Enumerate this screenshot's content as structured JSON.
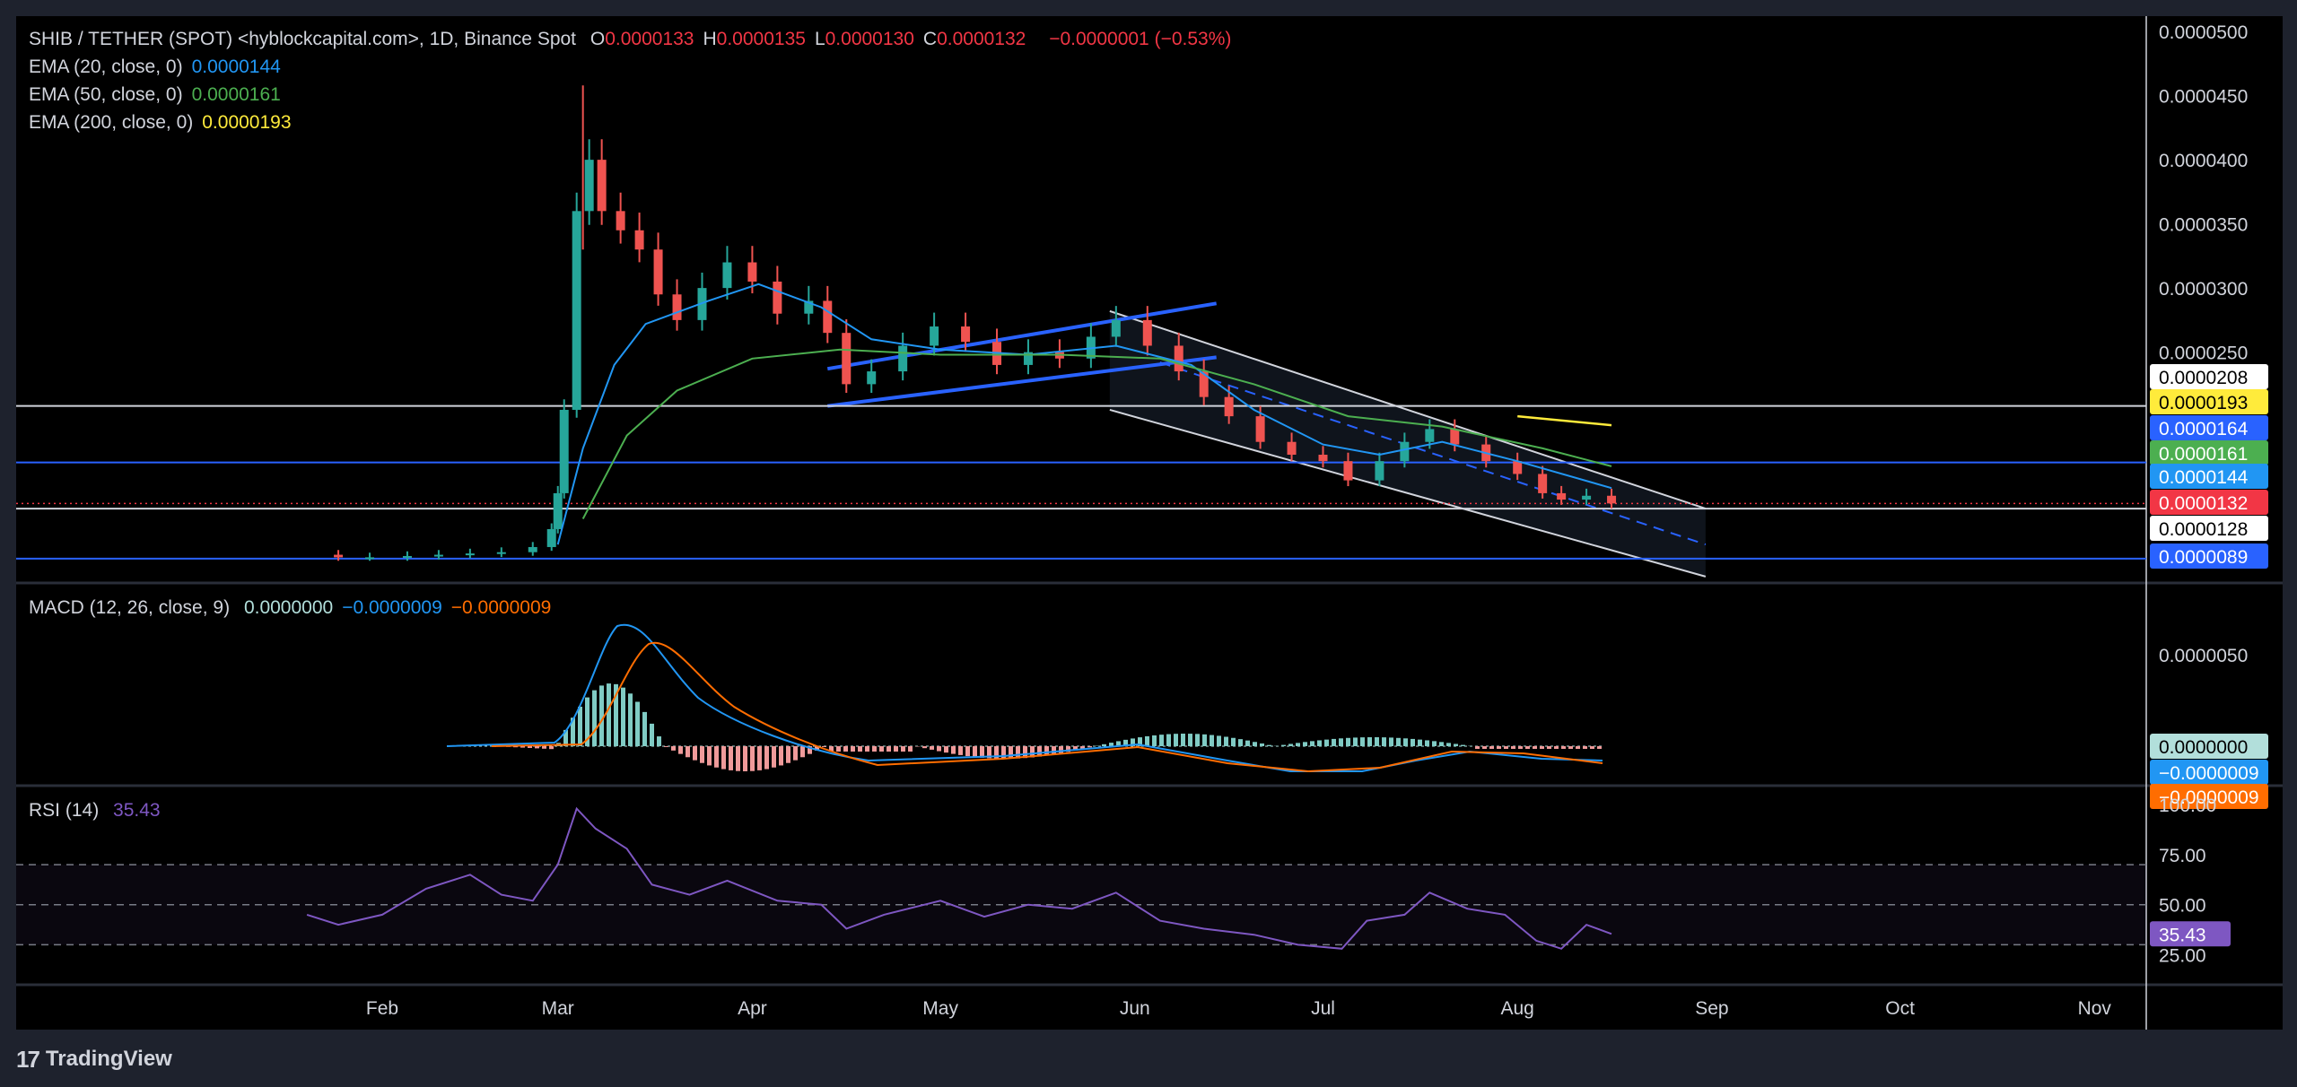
{
  "header": {
    "symbol": "SHIB / TETHER (SPOT) <hyblockcapital.com>, 1D, Binance Spot",
    "ohlc": [
      {
        "k": "O",
        "v": "0.0000133"
      },
      {
        "k": "H",
        "v": "0.0000135"
      },
      {
        "k": "L",
        "v": "0.0000130"
      },
      {
        "k": "C",
        "v": "0.0000132"
      }
    ],
    "change": "−0.0000001 (−0.53%)"
  },
  "ema_legend": [
    {
      "label": "EMA (20, close, 0)",
      "value": "0.0000144",
      "color": "#2196f3"
    },
    {
      "label": "EMA (50, close, 0)",
      "value": "0.0000161",
      "color": "#4caf50"
    },
    {
      "label": "EMA (200, close, 0)",
      "value": "0.0000193",
      "color": "#ffeb3b"
    }
  ],
  "macd_legend": {
    "label": "MACD (12, 26, close, 9)",
    "values": [
      {
        "v": "0.0000000",
        "color": "#b2dfdb"
      },
      {
        "v": "−0.0000009",
        "color": "#2196f3"
      },
      {
        "v": "−0.0000009",
        "color": "#ff6d00"
      }
    ]
  },
  "rsi_legend": {
    "label": "RSI (14)",
    "value": "35.43",
    "color": "#7e57c2"
  },
  "footer": {
    "brand": "TradingView",
    "logo": "17"
  },
  "colors": {
    "up": "#26a69a",
    "down": "#ef5350",
    "bg": "#000000",
    "frame": "#1e222d",
    "ema20": "#2196f3",
    "ema50": "#4caf50",
    "ema200": "#ffeb3b",
    "macd_signal": "#ff6d00",
    "rsi": "#7e57c2"
  },
  "chart_data": [
    {
      "type": "candlestick",
      "name": "price",
      "y_ticks": [
        "0.0000250",
        "0.0000300",
        "0.0000350",
        "0.0000400",
        "0.0000450",
        "0.0000500"
      ],
      "x_ticks": [
        "Feb",
        "Mar",
        "Apr",
        "May",
        "Jun",
        "Jul",
        "Aug",
        "Sep",
        "Oct",
        "Nov"
      ],
      "ylim": [
        7e-06,
        5.05e-05
      ],
      "x_range_days": [
        "2023-01-01",
        "2023-11-30"
      ],
      "close_series": [
        [
          "2023-01-20",
          9.2e-06
        ],
        [
          "2023-01-25",
          9e-06
        ],
        [
          "2023-01-30",
          9e-06
        ],
        [
          "2023-02-05",
          9.1e-06
        ],
        [
          "2023-02-10",
          9.2e-06
        ],
        [
          "2023-02-15",
          9.3e-06
        ],
        [
          "2023-02-20",
          9.4e-06
        ],
        [
          "2023-02-25",
          9.8e-06
        ],
        [
          "2023-02-28",
          1.12e-05
        ],
        [
          "2023-03-01",
          1.4e-05
        ],
        [
          "2023-03-02",
          2.05e-05
        ],
        [
          "2023-03-04",
          3.6e-05
        ],
        [
          "2023-03-06",
          4e-05
        ],
        [
          "2023-03-08",
          3.6e-05
        ],
        [
          "2023-03-11",
          3.45e-05
        ],
        [
          "2023-03-14",
          3.3e-05
        ],
        [
          "2023-03-17",
          2.95e-05
        ],
        [
          "2023-03-20",
          2.75e-05
        ],
        [
          "2023-03-24",
          3e-05
        ],
        [
          "2023-03-28",
          3.2e-05
        ],
        [
          "2023-04-01",
          3.05e-05
        ],
        [
          "2023-04-05",
          2.8e-05
        ],
        [
          "2023-04-10",
          2.9e-05
        ],
        [
          "2023-04-13",
          2.65e-05
        ],
        [
          "2023-04-16",
          2.25e-05
        ],
        [
          "2023-04-20",
          2.35e-05
        ],
        [
          "2023-04-25",
          2.55e-05
        ],
        [
          "2023-04-30",
          2.7e-05
        ],
        [
          "2023-05-05",
          2.58e-05
        ],
        [
          "2023-05-10",
          2.4e-05
        ],
        [
          "2023-05-15",
          2.5e-05
        ],
        [
          "2023-05-20",
          2.45e-05
        ],
        [
          "2023-05-25",
          2.62e-05
        ],
        [
          "2023-05-29",
          2.75e-05
        ],
        [
          "2023-06-03",
          2.55e-05
        ],
        [
          "2023-06-08",
          2.35e-05
        ],
        [
          "2023-06-12",
          2.15e-05
        ],
        [
          "2023-06-16",
          2e-05
        ],
        [
          "2023-06-21",
          1.8e-05
        ],
        [
          "2023-06-26",
          1.7e-05
        ],
        [
          "2023-07-01",
          1.65e-05
        ],
        [
          "2023-07-05",
          1.5e-05
        ],
        [
          "2023-07-10",
          1.65e-05
        ],
        [
          "2023-07-14",
          1.8e-05
        ],
        [
          "2023-07-18",
          1.9e-05
        ],
        [
          "2023-07-22",
          1.78e-05
        ],
        [
          "2023-07-27",
          1.65e-05
        ],
        [
          "2023-08-01",
          1.55e-05
        ],
        [
          "2023-08-05",
          1.4e-05
        ],
        [
          "2023-08-08",
          1.35e-05
        ],
        [
          "2023-08-12",
          1.38e-05
        ],
        [
          "2023-08-16",
          1.32e-05
        ]
      ],
      "ema20": [
        [
          "2023-03-01",
          1e-05
        ],
        [
          "2023-03-05",
          1.75e-05
        ],
        [
          "2023-03-10",
          2.4e-05
        ],
        [
          "2023-03-15",
          2.72e-05
        ],
        [
          "2023-03-25",
          2.9e-05
        ],
        [
          "2023-04-02",
          3.03e-05
        ],
        [
          "2023-04-12",
          2.85e-05
        ],
        [
          "2023-04-20",
          2.6e-05
        ],
        [
          "2023-05-01",
          2.52e-05
        ],
        [
          "2023-05-15",
          2.48e-05
        ],
        [
          "2023-05-29",
          2.55e-05
        ],
        [
          "2023-06-10",
          2.4e-05
        ],
        [
          "2023-06-20",
          2.05e-05
        ],
        [
          "2023-07-01",
          1.78e-05
        ],
        [
          "2023-07-10",
          1.7e-05
        ],
        [
          "2023-07-20",
          1.8e-05
        ],
        [
          "2023-08-01",
          1.65e-05
        ],
        [
          "2023-08-16",
          1.44e-05
        ]
      ],
      "ema50": [
        [
          "2023-03-05",
          1.2e-05
        ],
        [
          "2023-03-12",
          1.85e-05
        ],
        [
          "2023-03-20",
          2.2e-05
        ],
        [
          "2023-04-01",
          2.45e-05
        ],
        [
          "2023-04-15",
          2.52e-05
        ],
        [
          "2023-05-01",
          2.48e-05
        ],
        [
          "2023-05-20",
          2.48e-05
        ],
        [
          "2023-06-05",
          2.45e-05
        ],
        [
          "2023-06-20",
          2.25e-05
        ],
        [
          "2023-07-05",
          2e-05
        ],
        [
          "2023-07-20",
          1.92e-05
        ],
        [
          "2023-08-05",
          1.75e-05
        ],
        [
          "2023-08-16",
          1.61e-05
        ]
      ],
      "ema200": [
        [
          "2023-08-01",
          2e-05
        ],
        [
          "2023-08-16",
          1.93e-05
        ]
      ],
      "horizontal_levels": [
        2.08e-05,
        1.64e-05,
        1.28e-05,
        8.9e-06
      ],
      "price_labels": [
        {
          "v": "0.0000208",
          "bg": "#ffffff",
          "fg": "#000000"
        },
        {
          "v": "0.0000193",
          "bg": "#ffeb3b",
          "fg": "#000000"
        },
        {
          "v": "0.0000164",
          "bg": "#2962ff",
          "fg": "#ffffff"
        },
        {
          "v": "0.0000161",
          "bg": "#4caf50",
          "fg": "#ffffff"
        },
        {
          "v": "0.0000144",
          "bg": "#2196f3",
          "fg": "#ffffff"
        },
        {
          "v": "0.0000132",
          "bg": "#f23645",
          "fg": "#ffffff"
        },
        {
          "v": "0.0000128",
          "bg": "#ffffff",
          "fg": "#000000"
        },
        {
          "v": "0.0000089",
          "bg": "#2962ff",
          "fg": "#ffffff"
        }
      ]
    },
    {
      "type": "line+histogram",
      "name": "MACD",
      "y_ticks": [
        "0.0000050"
      ],
      "price_labels": [
        {
          "v": "0.0000000",
          "bg": "#b2dfdb",
          "fg": "#000000"
        },
        {
          "v": "−0.0000009",
          "bg": "#2196f3",
          "fg": "#ffffff"
        },
        {
          "v": "−0.0000009",
          "bg": "#ff6d00",
          "fg": "#ffffff"
        }
      ]
    },
    {
      "type": "line",
      "name": "RSI",
      "y_ticks": [
        "100.00",
        "75.00",
        "50.00",
        "25.00"
      ],
      "ylim": [
        10,
        105
      ],
      "bands": [
        70,
        50,
        30
      ],
      "series": [
        [
          "2023-01-20",
          45
        ],
        [
          "2023-01-25",
          40
        ],
        [
          "2023-02-01",
          45
        ],
        [
          "2023-02-08",
          58
        ],
        [
          "2023-02-15",
          65
        ],
        [
          "2023-02-20",
          55
        ],
        [
          "2023-02-25",
          52
        ],
        [
          "2023-03-01",
          70
        ],
        [
          "2023-03-04",
          98
        ],
        [
          "2023-03-07",
          88
        ],
        [
          "2023-03-12",
          78
        ],
        [
          "2023-03-16",
          60
        ],
        [
          "2023-03-22",
          55
        ],
        [
          "2023-03-28",
          62
        ],
        [
          "2023-04-05",
          52
        ],
        [
          "2023-04-12",
          50
        ],
        [
          "2023-04-16",
          38
        ],
        [
          "2023-04-22",
          45
        ],
        [
          "2023-05-01",
          52
        ],
        [
          "2023-05-08",
          44
        ],
        [
          "2023-05-15",
          50
        ],
        [
          "2023-05-22",
          48
        ],
        [
          "2023-05-29",
          56
        ],
        [
          "2023-06-05",
          42
        ],
        [
          "2023-06-12",
          38
        ],
        [
          "2023-06-20",
          35
        ],
        [
          "2023-06-27",
          30
        ],
        [
          "2023-07-04",
          28
        ],
        [
          "2023-07-08",
          42
        ],
        [
          "2023-07-14",
          45
        ],
        [
          "2023-07-18",
          56
        ],
        [
          "2023-07-24",
          48
        ],
        [
          "2023-07-30",
          45
        ],
        [
          "2023-08-04",
          32
        ],
        [
          "2023-08-08",
          28
        ],
        [
          "2023-08-12",
          40
        ],
        [
          "2023-08-16",
          35.43
        ]
      ],
      "price_label": {
        "v": "35.43",
        "bg": "#7e57c2",
        "fg": "#ffffff"
      }
    }
  ]
}
